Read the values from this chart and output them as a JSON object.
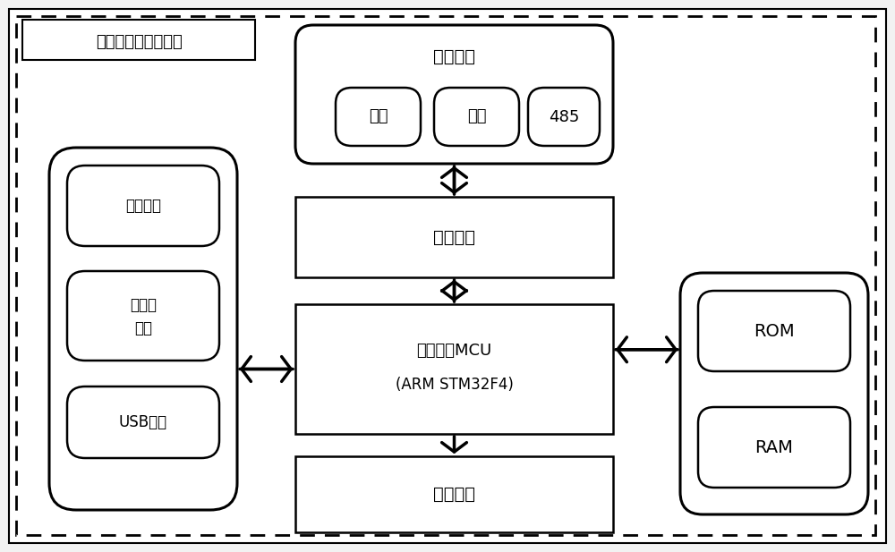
{
  "bg_color": "#f0f0f0",
  "fig_width": 10.0,
  "fig_height": 6.17,
  "label_text": "边缘计算微控制单元",
  "comm_label": "通信接口",
  "security_label": "安全芯片",
  "mcu_label1": "微处理器MCU",
  "mcu_label2": "(ARM STM32F4)",
  "compute_label": "计算芯片",
  "left_labels": [
    "显示报警",
    "传感器\n接口",
    "USB接口"
  ],
  "comm_sub_labels": [
    "红外",
    "蓝牙",
    "485"
  ],
  "right_labels": [
    "ROM",
    "RAM"
  ]
}
